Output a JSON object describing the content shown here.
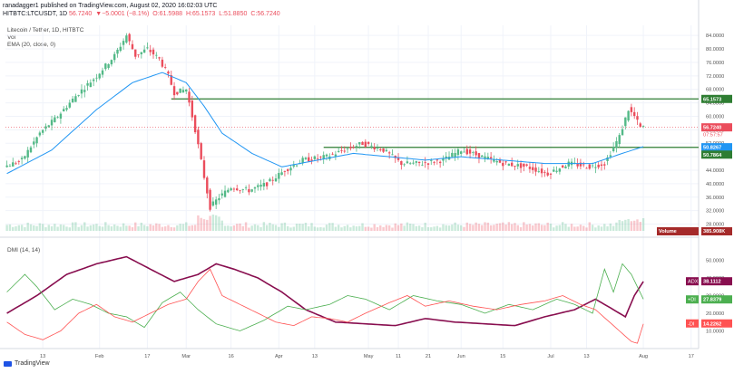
{
  "header": {
    "published_line": "ranadagger1 published on TradingView.com, August 02, 2020 16:02:03 UTC",
    "symbol": "HITBTC:LTCUSDT, 1D",
    "last": "56.7240",
    "change": "▼−5.0001 (−8.1%)",
    "ohlc": {
      "o": "O:61.5988",
      "h": "H:65.1573",
      "l": "L:51.8850",
      "c": "C:56.7240"
    }
  },
  "legend": {
    "title": "Litecoin / Tether, 1D, HITBTC",
    "vol": "Vol",
    "ema": "EMA (20, close, 0)",
    "dmi": "DMI (14, 14)"
  },
  "footer": {
    "brand": "TradingView"
  },
  "colors": {
    "up": "#53b987",
    "down": "#eb4d5c",
    "ema": "#2196f3",
    "resistance": "#2e7d32",
    "adx": "#880e4f",
    "plus_di": "#4caf50",
    "minus_di": "#ff5252",
    "axis_text": "#555555",
    "grid": "#f0f3fa"
  },
  "chart_data": [
    {
      "type": "candlestick",
      "title": "Litecoin / Tether, 1D, HITBTC",
      "ylim": [
        26.0,
        87.0
      ],
      "y_ticks": [
        "84.0000",
        "80.0000",
        "76.0000",
        "72.0000",
        "68.0000",
        "64.0000",
        "60.0000",
        "56.0000",
        "52.0000",
        "48.0000",
        "44.0000",
        "40.0000",
        "36.0000",
        "32.0000",
        "28.0000"
      ],
      "x_ticks": [
        {
          "label": "13",
          "i": 12
        },
        {
          "label": "Feb",
          "i": 31
        },
        {
          "label": "17",
          "i": 47
        },
        {
          "label": "Mar",
          "i": 60
        },
        {
          "label": "16",
          "i": 75
        },
        {
          "label": "Apr",
          "i": 91
        },
        {
          "label": "13",
          "i": 103
        },
        {
          "label": "May",
          "i": 121
        },
        {
          "label": "11",
          "i": 131
        },
        {
          "label": "21",
          "i": 141
        },
        {
          "label": "Jun",
          "i": 152
        },
        {
          "label": "15",
          "i": 166
        },
        {
          "label": "Jul",
          "i": 182
        },
        {
          "label": "13",
          "i": 194
        },
        {
          "label": "Aug",
          "i": 213
        },
        {
          "label": "17",
          "i": 229
        }
      ],
      "price_anchors": [
        [
          0,
          45
        ],
        [
          6,
          47
        ],
        [
          12,
          55
        ],
        [
          18,
          60
        ],
        [
          24,
          66
        ],
        [
          31,
          72
        ],
        [
          37,
          78
        ],
        [
          41,
          84
        ],
        [
          44,
          78
        ],
        [
          48,
          80
        ],
        [
          52,
          77
        ],
        [
          55,
          72
        ],
        [
          57,
          67
        ],
        [
          61,
          68
        ],
        [
          64,
          56
        ],
        [
          67,
          42
        ],
        [
          69,
          33
        ],
        [
          72,
          36
        ],
        [
          76,
          39
        ],
        [
          82,
          38
        ],
        [
          88,
          40
        ],
        [
          94,
          44
        ],
        [
          100,
          47
        ],
        [
          108,
          48
        ],
        [
          114,
          50
        ],
        [
          120,
          52
        ],
        [
          127,
          50
        ],
        [
          133,
          46
        ],
        [
          140,
          46
        ],
        [
          147,
          47
        ],
        [
          153,
          50
        ],
        [
          160,
          48
        ],
        [
          167,
          46
        ],
        [
          175,
          45
        ],
        [
          182,
          43
        ],
        [
          189,
          46
        ],
        [
          196,
          45
        ],
        [
          201,
          46
        ],
        [
          206,
          54
        ],
        [
          209,
          62
        ],
        [
          211,
          60
        ],
        [
          213,
          56.7
        ]
      ],
      "current_price": "56.7240",
      "countdown": "07:57:57",
      "ema_last": "50.8267",
      "level_upper": "65.1573",
      "level_lower": "50.7864",
      "volume_label": "Volume",
      "volume_last": "385.908K",
      "series": [
        {
          "name": "EMA (20, close, 0)",
          "anchors": [
            [
              0,
              43
            ],
            [
              15,
              50
            ],
            [
              30,
              62
            ],
            [
              42,
              70
            ],
            [
              52,
              73
            ],
            [
              60,
              70
            ],
            [
              66,
              63
            ],
            [
              72,
              55
            ],
            [
              82,
              49
            ],
            [
              92,
              45
            ],
            [
              104,
              47
            ],
            [
              116,
              49
            ],
            [
              128,
              48
            ],
            [
              140,
              47
            ],
            [
              152,
              48
            ],
            [
              166,
              47
            ],
            [
              180,
              46
            ],
            [
              196,
              46
            ],
            [
              206,
              49
            ],
            [
              213,
              51
            ]
          ]
        }
      ]
    },
    {
      "type": "line",
      "title": "DMI (14, 14)",
      "ylim": [
        0,
        60
      ],
      "y_ticks": [
        "50.0000",
        "40.0000",
        "30.0000",
        "20.0000",
        "10.0000"
      ],
      "series": [
        {
          "name": "ADX",
          "last": "38.1112",
          "anchors": [
            [
              0,
              20
            ],
            [
              10,
              30
            ],
            [
              20,
              42
            ],
            [
              30,
              48
            ],
            [
              40,
              52
            ],
            [
              48,
              45
            ],
            [
              56,
              38
            ],
            [
              64,
              42
            ],
            [
              70,
              48
            ],
            [
              76,
              45
            ],
            [
              84,
              40
            ],
            [
              92,
              32
            ],
            [
              100,
              22
            ],
            [
              110,
              15
            ],
            [
              120,
              14
            ],
            [
              130,
              13
            ],
            [
              140,
              17
            ],
            [
              150,
              15
            ],
            [
              160,
              14
            ],
            [
              170,
              13
            ],
            [
              180,
              18
            ],
            [
              190,
              22
            ],
            [
              197,
              28
            ],
            [
              202,
              23
            ],
            [
              207,
              18
            ],
            [
              210,
              30
            ],
            [
              213,
              38
            ]
          ]
        },
        {
          "name": "+DI",
          "last": "27.8379",
          "anchors": [
            [
              0,
              32
            ],
            [
              6,
              42
            ],
            [
              10,
              35
            ],
            [
              16,
              22
            ],
            [
              22,
              28
            ],
            [
              28,
              25
            ],
            [
              34,
              20
            ],
            [
              40,
              18
            ],
            [
              46,
              12
            ],
            [
              52,
              26
            ],
            [
              58,
              32
            ],
            [
              64,
              22
            ],
            [
              70,
              14
            ],
            [
              78,
              10
            ],
            [
              86,
              16
            ],
            [
              94,
              24
            ],
            [
              100,
              22
            ],
            [
              108,
              25
            ],
            [
              114,
              30
            ],
            [
              120,
              28
            ],
            [
              128,
              22
            ],
            [
              136,
              30
            ],
            [
              144,
              27
            ],
            [
              152,
              25
            ],
            [
              160,
              20
            ],
            [
              168,
              25
            ],
            [
              176,
              22
            ],
            [
              184,
              28
            ],
            [
              190,
              25
            ],
            [
              196,
              20
            ],
            [
              200,
              45
            ],
            [
              203,
              32
            ],
            [
              206,
              48
            ],
            [
              209,
              42
            ],
            [
              213,
              28
            ]
          ]
        },
        {
          "name": "-DI",
          "last": "14.2262",
          "anchors": [
            [
              0,
              15
            ],
            [
              6,
              8
            ],
            [
              12,
              5
            ],
            [
              18,
              10
            ],
            [
              24,
              20
            ],
            [
              30,
              25
            ],
            [
              36,
              18
            ],
            [
              42,
              15
            ],
            [
              48,
              20
            ],
            [
              54,
              25
            ],
            [
              60,
              28
            ],
            [
              64,
              38
            ],
            [
              68,
              45
            ],
            [
              72,
              30
            ],
            [
              78,
              25
            ],
            [
              84,
              20
            ],
            [
              90,
              15
            ],
            [
              96,
              13
            ],
            [
              102,
              18
            ],
            [
              108,
              17
            ],
            [
              114,
              15
            ],
            [
              120,
              20
            ],
            [
              128,
              26
            ],
            [
              134,
              30
            ],
            [
              140,
              24
            ],
            [
              148,
              27
            ],
            [
              156,
              24
            ],
            [
              164,
              22
            ],
            [
              172,
              25
            ],
            [
              180,
              27
            ],
            [
              186,
              30
            ],
            [
              192,
              25
            ],
            [
              197,
              22
            ],
            [
              201,
              16
            ],
            [
              205,
              10
            ],
            [
              209,
              4
            ],
            [
              211,
              3
            ],
            [
              213,
              14
            ]
          ]
        }
      ]
    }
  ]
}
